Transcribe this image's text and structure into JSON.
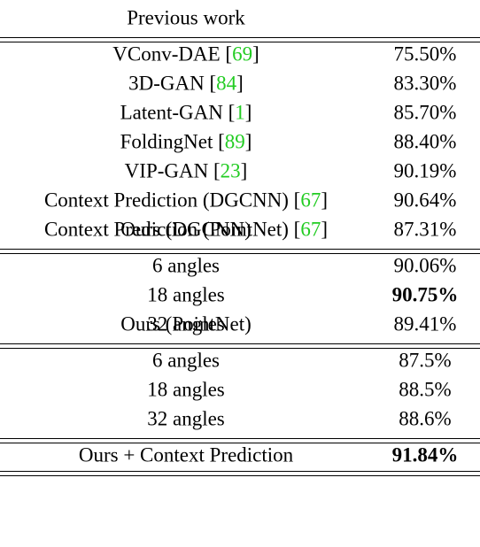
{
  "sections": [
    {
      "header": "Previous work",
      "rows": [
        {
          "name": "VConv-DAE [",
          "ref": "69",
          "tail": "]",
          "value": "75.50%"
        },
        {
          "name": "3D-GAN [",
          "ref": "84",
          "tail": "]",
          "value": "83.30%"
        },
        {
          "name": "Latent-GAN [",
          "ref": "1",
          "tail": "]",
          "value": "85.70%"
        },
        {
          "name": "FoldingNet [",
          "ref": "89",
          "tail": "]",
          "value": "88.40%"
        },
        {
          "name": "VIP-GAN [",
          "ref": "23",
          "tail": "]",
          "value": "90.19%"
        },
        {
          "name": "Context Prediction (DGCNN) [",
          "ref": "67",
          "tail": "]",
          "value": "90.64%"
        },
        {
          "name": "Context Prediction (PointNet) [",
          "ref": "67",
          "tail": "]",
          "value": "87.31%"
        }
      ]
    },
    {
      "header": "Ours (DGCNN)",
      "rows": [
        {
          "name": "6 angles",
          "value": "90.06%"
        },
        {
          "name": "18 angles",
          "value": "90.75%",
          "bold": true
        },
        {
          "name": "32 angles",
          "value": "89.41%"
        }
      ]
    },
    {
      "header": "Ours (PointNet)",
      "rows": [
        {
          "name": "6 angles",
          "value": "87.5%"
        },
        {
          "name": "18 angles",
          "value": "88.5%"
        },
        {
          "name": "32 angles",
          "value": "88.6%"
        }
      ]
    },
    {
      "rows": [
        {
          "name": "Ours + Context Prediction",
          "value": "91.84%",
          "bold": true
        }
      ]
    }
  ]
}
